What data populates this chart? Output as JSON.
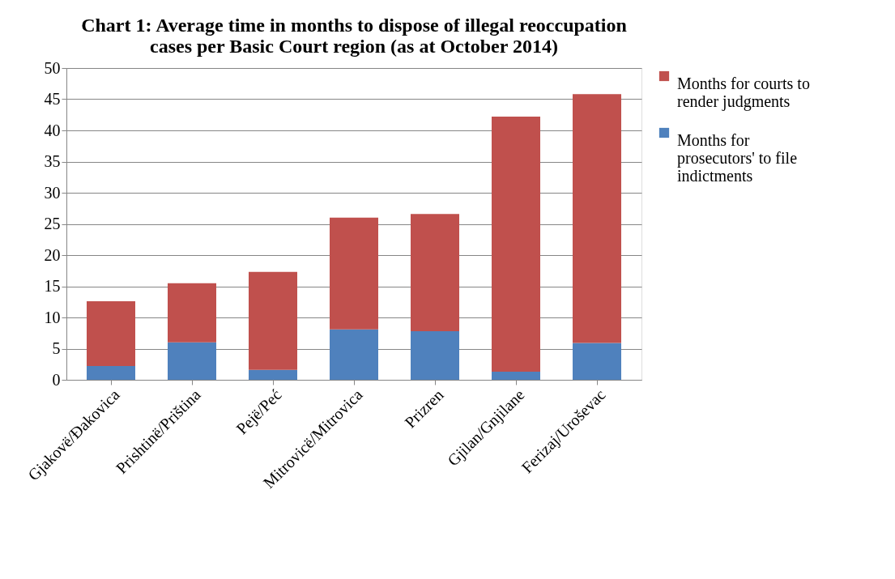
{
  "chart_data": {
    "type": "bar",
    "stacked": true,
    "title": "Chart 1: Average time in months to dispose of illegal reoccupation cases per Basic Court region (as at October 2014)",
    "categories": [
      "Gjakovë/Đakovica",
      "Prishtinë/Priština",
      "Pejë/Peć",
      "Mitrovicë/Mitrovica",
      "Prizren",
      "Gjilan/Gnjilane",
      "Ferizaj/Uroševac"
    ],
    "series": [
      {
        "name": "Months for prosecutors' to file indictments",
        "color": "#4f81bd",
        "values": [
          2.2,
          6.0,
          1.6,
          8.1,
          7.8,
          1.3,
          5.9
        ]
      },
      {
        "name": "Months for courts to render judgments",
        "color": "#c0504d",
        "values": [
          10.4,
          9.5,
          15.7,
          17.9,
          18.8,
          40.9,
          39.9
        ]
      }
    ],
    "ylim": [
      0,
      50
    ],
    "yticks": [
      0,
      5,
      10,
      15,
      20,
      25,
      30,
      35,
      40,
      45,
      50
    ],
    "grid": "y",
    "legend": "right"
  }
}
